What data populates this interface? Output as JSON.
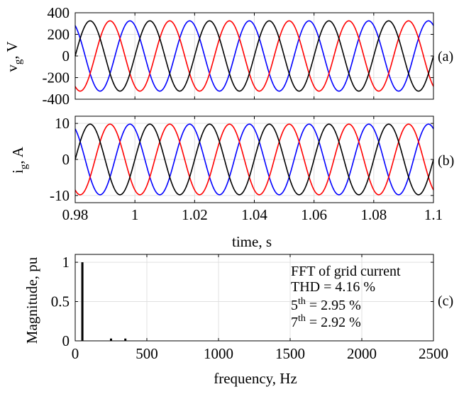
{
  "chart_data": [
    {
      "id": "a",
      "type": "line",
      "panel_label": "(a)",
      "ylabel_main": "v",
      "ylabel_sub": "g",
      "ylabel_unit": ", V",
      "xlim": [
        0.98,
        1.1
      ],
      "ylim": [
        -400,
        400
      ],
      "yticks": [
        -400,
        -200,
        0,
        200,
        400
      ],
      "ytick_labels": [
        "-400",
        "-200",
        "0",
        "200",
        "400"
      ],
      "xticks": [
        0.98,
        1.0,
        1.02,
        1.04,
        1.06,
        1.08,
        1.1
      ],
      "grid": true,
      "frequency_hz": 50,
      "amplitude": 325,
      "series": [
        {
          "phase_deg": 120,
          "color": "#0000ff"
        },
        {
          "phase_deg": -120,
          "color": "#ff0000"
        },
        {
          "phase_deg": 0,
          "color": "#000000"
        }
      ]
    },
    {
      "id": "b",
      "type": "line",
      "panel_label": "(b)",
      "ylabel_main": "i",
      "ylabel_sub": "g",
      "ylabel_unit": ", A",
      "xlabel": "time, s",
      "xlim": [
        0.98,
        1.1
      ],
      "ylim": [
        -12,
        12
      ],
      "yticks": [
        -10,
        0,
        10
      ],
      "ytick_labels": [
        "-10",
        "0",
        "10"
      ],
      "xticks": [
        0.98,
        1.0,
        1.02,
        1.04,
        1.06,
        1.08,
        1.1
      ],
      "xtick_labels": [
        "0.98",
        "1",
        "1.02",
        "1.04",
        "1.06",
        "1.08",
        "1.1"
      ],
      "grid": true,
      "frequency_hz": 50,
      "amplitude": 9.8,
      "series": [
        {
          "phase_deg": 120,
          "color": "#0000ff"
        },
        {
          "phase_deg": -120,
          "color": "#ff0000"
        },
        {
          "phase_deg": 0,
          "color": "#000000"
        }
      ]
    },
    {
      "id": "c",
      "type": "bar",
      "panel_label": "(c)",
      "ylabel": "Magnitude, pu",
      "xlabel": "frequency, Hz",
      "xlim": [
        0,
        2500
      ],
      "ylim": [
        0,
        1.1
      ],
      "yticks": [
        0,
        0.5,
        1
      ],
      "ytick_labels": [
        "0",
        "0.5",
        "1"
      ],
      "xticks": [
        0,
        500,
        1000,
        1500,
        2000,
        2500
      ],
      "xtick_labels": [
        "0",
        "500",
        "1000",
        "1500",
        "2000",
        "2500"
      ],
      "grid": true,
      "harmonics": [
        {
          "freq": 50,
          "mag": 1.0
        },
        {
          "freq": 250,
          "mag": 0.0295
        },
        {
          "freq": 350,
          "mag": 0.0292
        }
      ],
      "annotation": {
        "title": "FFT of grid current",
        "thd": "THD = 4.16 %",
        "h5_base": "5",
        "h5_sup": "th",
        "h5_value": " = 2.95 %",
        "h7_base": "7",
        "h7_sup": "th",
        "h7_value": " = 2.92 %"
      }
    }
  ]
}
